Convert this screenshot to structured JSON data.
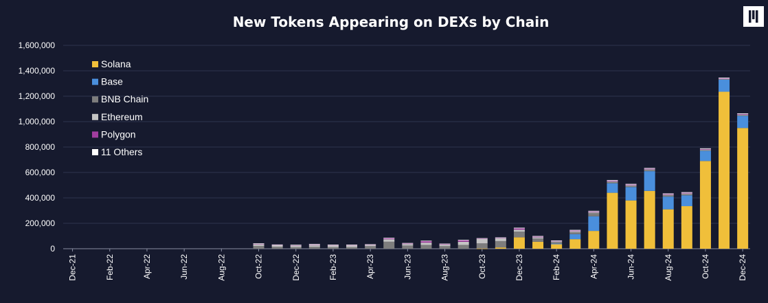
{
  "chart_data": {
    "type": "bar",
    "stacked": true,
    "title": "New Tokens Appearing on DEXs by Chain",
    "xlabel": "",
    "ylabel": "",
    "ylim": [
      0,
      1600000
    ],
    "yticks": [
      0,
      200000,
      400000,
      600000,
      800000,
      1000000,
      1200000,
      1400000,
      1600000
    ],
    "ytick_labels": [
      "0",
      "200,000",
      "400,000",
      "600,000",
      "800,000",
      "1,000,000",
      "1,200,000",
      "1,400,000",
      "1,600,000"
    ],
    "grid": true,
    "legend_position": "top-left",
    "categories": [
      "Dec-21",
      "Jan-22",
      "Feb-22",
      "Mar-22",
      "Apr-22",
      "May-22",
      "Jun-22",
      "Jul-22",
      "Aug-22",
      "Sep-22",
      "Oct-22",
      "Nov-22",
      "Dec-22",
      "Jan-23",
      "Feb-23",
      "Mar-23",
      "Apr-23",
      "May-23",
      "Jun-23",
      "Jul-23",
      "Aug-23",
      "Sep-23",
      "Oct-23",
      "Nov-23",
      "Dec-23",
      "Jan-24",
      "Feb-24",
      "Mar-24",
      "Apr-24",
      "May-24",
      "Jun-24",
      "Jul-24",
      "Aug-24",
      "Sep-24",
      "Oct-24",
      "Nov-24",
      "Dec-24"
    ],
    "x_tick_labels": [
      "Dec-21",
      "Feb-22",
      "Apr-22",
      "Jun-22",
      "Aug-22",
      "Oct-22",
      "Dec-22",
      "Feb-23",
      "Apr-23",
      "Jun-23",
      "Aug-23",
      "Oct-23",
      "Dec-23",
      "Feb-24",
      "Apr-24",
      "Jun-24",
      "Aug-24",
      "Oct-24",
      "Dec-24"
    ],
    "series": [
      {
        "name": "Solana",
        "color": "#f0bf3a",
        "values": [
          0,
          0,
          0,
          0,
          0,
          0,
          0,
          0,
          0,
          0,
          0,
          0,
          0,
          0,
          0,
          0,
          0,
          0,
          0,
          0,
          0,
          0,
          2000,
          10000,
          90000,
          55000,
          35000,
          75000,
          140000,
          440000,
          380000,
          455000,
          310000,
          335000,
          690000,
          1235000,
          950000
        ]
      },
      {
        "name": "Base",
        "color": "#4a8fdc",
        "values": [
          0,
          0,
          0,
          0,
          0,
          0,
          0,
          0,
          0,
          0,
          0,
          0,
          0,
          0,
          0,
          0,
          0,
          0,
          0,
          0,
          0,
          0,
          0,
          0,
          0,
          0,
          5000,
          40000,
          115000,
          75000,
          105000,
          155000,
          100000,
          85000,
          80000,
          95000,
          95000
        ]
      },
      {
        "name": "BNB Chain",
        "color": "#7d7d7d",
        "values": [
          0,
          0,
          0,
          0,
          0,
          0,
          0,
          0,
          0,
          0,
          22000,
          15000,
          12000,
          15000,
          12000,
          12000,
          20000,
          55000,
          25000,
          30000,
          20000,
          30000,
          40000,
          50000,
          45000,
          25000,
          12000,
          15000,
          25000,
          10000,
          10000,
          10000,
          10000,
          10000,
          5000,
          5000,
          5000
        ]
      },
      {
        "name": "Ethereum",
        "color": "#c4c4c4",
        "values": [
          0,
          0,
          0,
          0,
          0,
          0,
          0,
          0,
          0,
          0,
          13000,
          12000,
          13000,
          15000,
          15000,
          15000,
          10000,
          20000,
          12000,
          18000,
          12000,
          25000,
          35000,
          23000,
          15000,
          10000,
          6000,
          8000,
          8000,
          5000,
          5000,
          5000,
          5000,
          5000,
          5000,
          3000,
          5000
        ]
      },
      {
        "name": "Polygon",
        "color": "#a23ea0",
        "values": [
          0,
          0,
          0,
          0,
          0,
          0,
          0,
          0,
          0,
          0,
          5000,
          4000,
          4000,
          5000,
          3000,
          3000,
          3000,
          8000,
          5000,
          12000,
          5000,
          12000,
          3000,
          3000,
          10000,
          5000,
          5000,
          5000,
          5000,
          5000,
          5000,
          5000,
          5000,
          5000,
          5000,
          3000,
          5000
        ]
      },
      {
        "name": "11 Others",
        "color": "#ffffff",
        "values": [
          0,
          0,
          0,
          0,
          0,
          0,
          0,
          0,
          0,
          0,
          2000,
          2000,
          2000,
          2000,
          2000,
          2000,
          2000,
          3000,
          3000,
          3000,
          3000,
          3000,
          3000,
          3000,
          5000,
          5000,
          2000,
          5000,
          5000,
          5000,
          5000,
          5000,
          5000,
          5000,
          5000,
          5000,
          5000
        ]
      }
    ]
  }
}
